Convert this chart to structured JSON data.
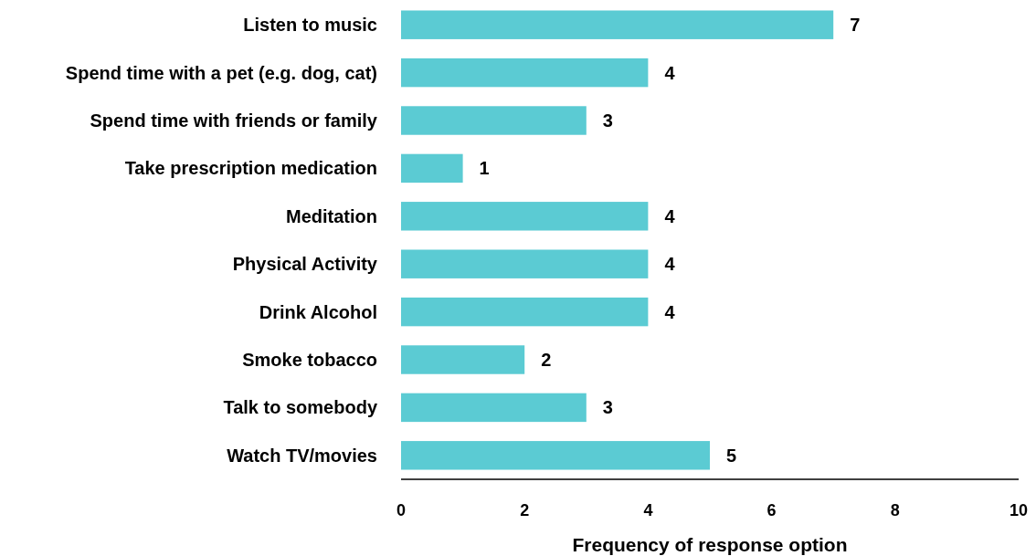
{
  "chart_data": {
    "type": "bar",
    "orientation": "horizontal",
    "xlabel": "Frequency of response option",
    "categories": [
      "Listen to music",
      "Spend time with a pet (e.g. dog, cat)",
      "Spend time with friends or family",
      "Take prescription medication",
      "Meditation",
      "Physical Activity",
      "Drink Alcohol",
      "Smoke tobacco",
      "Talk to somebody",
      "Watch TV/movies"
    ],
    "values": [
      7,
      4,
      3,
      1,
      4,
      4,
      4,
      2,
      3,
      5
    ],
    "color": "#5bcbd3",
    "xlim": [
      0,
      10
    ],
    "xticks": [
      0,
      2,
      4,
      6,
      8,
      10
    ],
    "data_labels": true,
    "grid": false
  }
}
